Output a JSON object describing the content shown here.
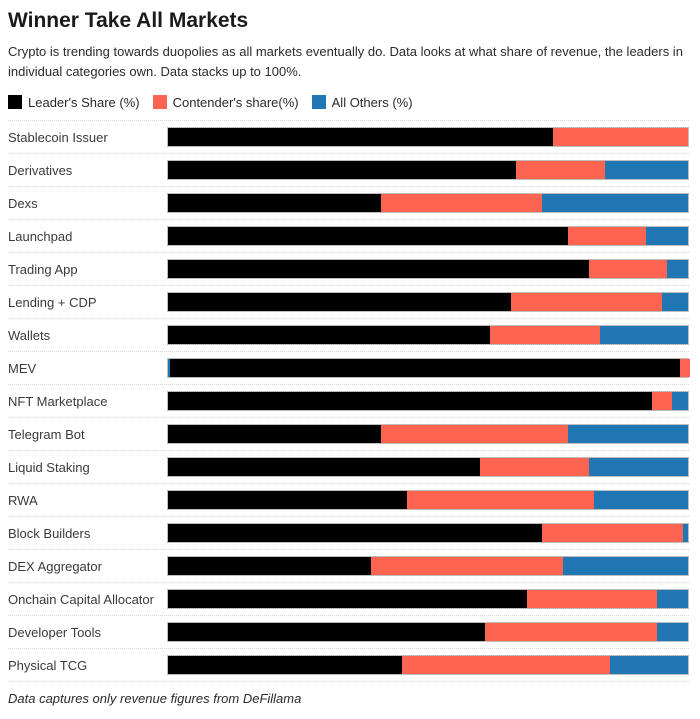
{
  "header": {
    "title": "Winner Take All Markets",
    "subtitle": "Crypto is trending towards duopolies as all markets eventually do. Data looks at what share of revenue, the leaders in individual categories own. Data stacks up to 100%."
  },
  "legend": {
    "items": [
      {
        "key": "leader",
        "label": "Leader's Share (%)",
        "color": "#000000"
      },
      {
        "key": "contender",
        "label": "Contender's share(%)",
        "color": "#fa6450"
      },
      {
        "key": "all-others",
        "label": "All Others (%)",
        "color": "#2177b4"
      }
    ]
  },
  "chart_data": {
    "type": "bar",
    "orientation": "horizontal",
    "stacked": true,
    "unit": "%",
    "xlim": [
      0,
      100
    ],
    "grid": "dotted-row-separators",
    "legend_position": "top",
    "categories": [
      "Stablecoin Issuer",
      "Derivatives",
      "Dexs",
      "Launchpad",
      "Trading App",
      "Lending + CDP",
      "Wallets",
      "MEV",
      "NFT Marketplace",
      "Telegram Bot",
      "Liquid Staking",
      "RWA",
      "Block Builders",
      "DEX Aggregator",
      "Onchain Capital Allocator",
      "Developer Tools",
      "Physical TCG"
    ],
    "series": [
      {
        "name": "Leader's Share (%)",
        "color": "#000000",
        "values": [
          74,
          67,
          41,
          77,
          81,
          66,
          62,
          98,
          93,
          41,
          60,
          46,
          72,
          39,
          69,
          61,
          45
        ]
      },
      {
        "name": "Contender's share(%)",
        "color": "#fa6450",
        "values": [
          26,
          17,
          31,
          15,
          15,
          29,
          21,
          2,
          4,
          36,
          21,
          36,
          27,
          37,
          25,
          33,
          40
        ]
      },
      {
        "name": "All Others (%)",
        "color": "#2177b4",
        "values": [
          0,
          16,
          28,
          8,
          4,
          5,
          17,
          0,
          3,
          23,
          19,
          18,
          1,
          24,
          6,
          6,
          15
        ]
      }
    ],
    "annotations": {
      "mev_left_edge_sliver": true,
      "mev_left_edge_sliver_color": "#2177b4"
    }
  },
  "footer": {
    "note": "Data captures only revenue figures from DeFillama"
  }
}
